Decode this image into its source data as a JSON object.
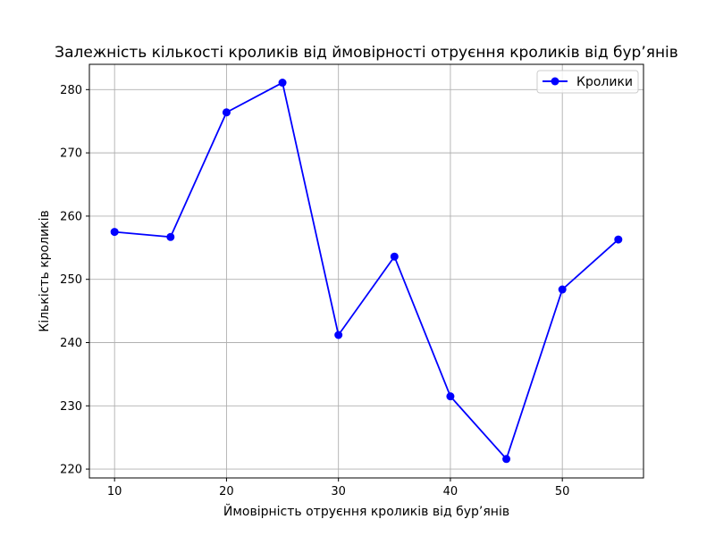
{
  "chart_data": {
    "type": "line",
    "title": "Залежність кількості кроликів від ймовірності отруєння кроликів від бур’янів",
    "xlabel": "Ймовірність отруєння кроликів від бур’янів",
    "ylabel": "Кількість кроликів",
    "xlim": [
      7.75,
      57.25
    ],
    "ylim": [
      218.6,
      284.0
    ],
    "xticks": [
      10,
      20,
      30,
      40,
      50
    ],
    "yticks": [
      220,
      230,
      240,
      250,
      260,
      270,
      280
    ],
    "grid": true,
    "legend_position": "top-right",
    "series": [
      {
        "name": "Кролики",
        "color": "#0000ff",
        "marker": "circle",
        "x": [
          10,
          15,
          20,
          25,
          30,
          35,
          40,
          45,
          50,
          55
        ],
        "y": [
          257.5,
          256.7,
          276.4,
          281.1,
          241.2,
          253.6,
          231.5,
          221.6,
          248.4,
          256.3
        ]
      }
    ]
  }
}
